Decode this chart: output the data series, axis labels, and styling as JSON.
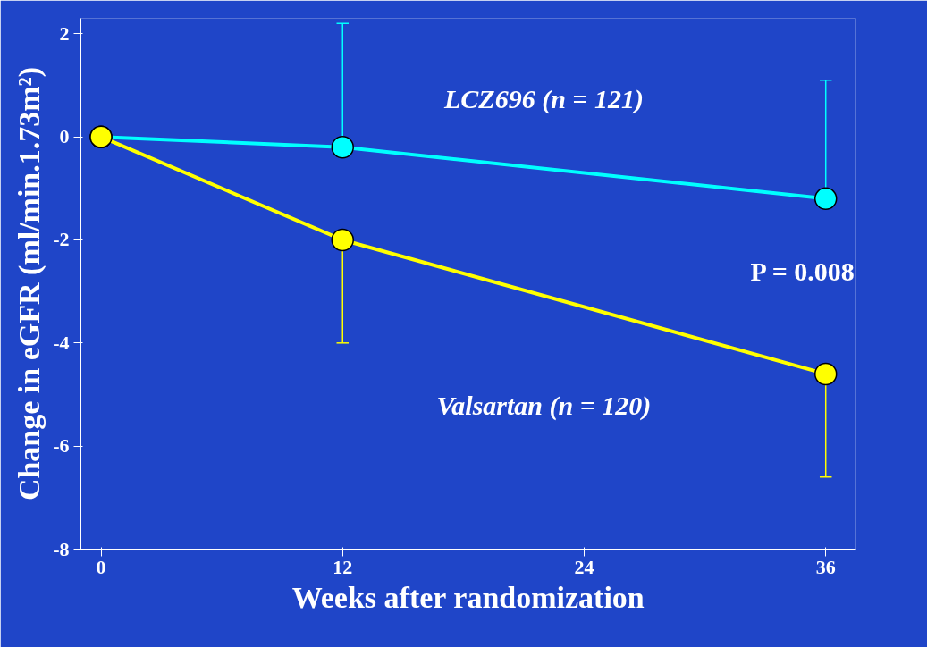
{
  "chart_data": {
    "type": "line",
    "xlabel": "Weeks after randomization",
    "ylabel": "Change in eGFR (ml/min.1.73m²)",
    "x": [
      0,
      12,
      36
    ],
    "xlim": [
      -1,
      37.5
    ],
    "xticks": [
      0,
      12,
      24,
      36
    ],
    "ylim": [
      -8,
      2.3
    ],
    "yticks": [
      -8,
      -6,
      -4,
      -2,
      0,
      2
    ],
    "grid": false,
    "marker": "circle",
    "line_style": "solid",
    "series": [
      {
        "name": "LCZ696 (n = 121)",
        "color": "#00ffff",
        "values": [
          0,
          -0.2,
          -1.2
        ],
        "errors": [
          null,
          [
            -0.2,
            2.2
          ],
          [
            -1.2,
            1.1
          ]
        ]
      },
      {
        "name": "Valsartan (n = 120)",
        "color": "#ffff00",
        "values": [
          0,
          -2.0,
          -4.6
        ],
        "errors": [
          null,
          [
            -4.0,
            -2.0
          ],
          [
            -6.6,
            -4.6
          ]
        ]
      }
    ],
    "annotations": [
      "P = 0.008"
    ]
  }
}
